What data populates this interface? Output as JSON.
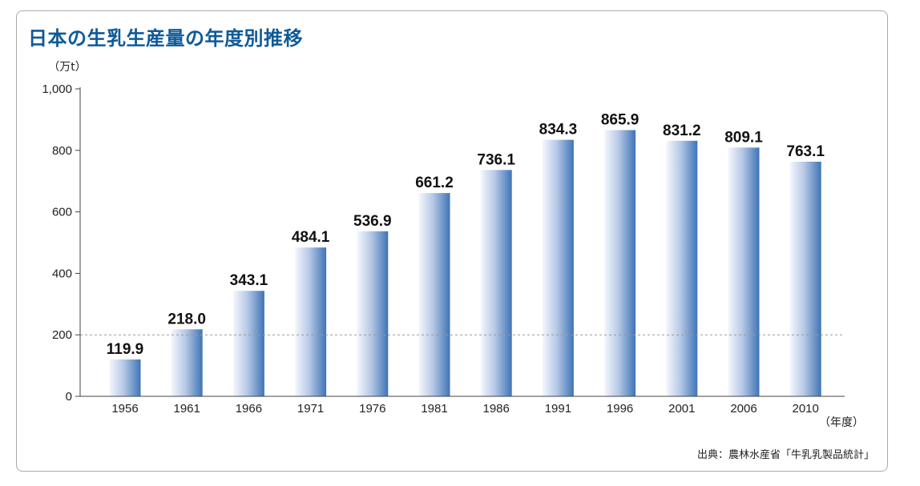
{
  "title": "日本の生乳生産量の年度別推移",
  "source": "出典：農林水産省「牛乳乳製品統計」",
  "colors": {
    "title": "#0e5a99",
    "bar_dark": "#3f74b6",
    "bar_light": "#f4f7fd",
    "axis": "#444444",
    "reference_line": "#999999"
  },
  "chart_data": {
    "type": "bar",
    "title": "日本の生乳生産量の年度別推移",
    "ylabel": "（万t）",
    "xlabel": "（年度）",
    "ylim": [
      0,
      1000
    ],
    "yticks": [
      0,
      200,
      400,
      600,
      800,
      1000
    ],
    "ytick_labels": [
      "0",
      "200",
      "400",
      "600",
      "800",
      "1,000"
    ],
    "reference_line": 200,
    "grid": false,
    "categories": [
      "1956",
      "1961",
      "1966",
      "1971",
      "1976",
      "1981",
      "1986",
      "1991",
      "1996",
      "2001",
      "2006",
      "2010"
    ],
    "values": [
      119.9,
      218.0,
      343.1,
      484.1,
      536.9,
      661.2,
      736.1,
      834.3,
      865.9,
      831.2,
      809.1,
      763.1
    ],
    "value_labels": [
      "119.9",
      "218.0",
      "343.1",
      "484.1",
      "536.9",
      "661.2",
      "736.1",
      "834.3",
      "865.9",
      "831.2",
      "809.1",
      "763.1"
    ]
  }
}
